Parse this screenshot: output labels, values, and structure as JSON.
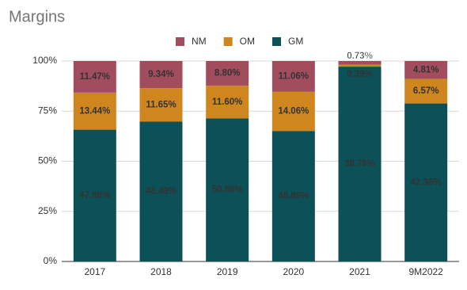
{
  "chart_data": {
    "type": "bar",
    "stacking": "percent",
    "title": "Margins",
    "categories": [
      "2017",
      "2018",
      "2019",
      "2020",
      "2021",
      "9M2022"
    ],
    "series": [
      {
        "name": "GM",
        "color": "#0c5058",
        "label_color": "#ffffff",
        "values": [
          47.86,
          48.49,
          50.88,
          46.89,
          38.78,
          42.36
        ],
        "value_labels": [
          "47.86%",
          "48.49%",
          "50.88%",
          "46.89%",
          "38.78%",
          "42.36%"
        ]
      },
      {
        "name": "OM",
        "color": "#d0861f",
        "label_color": "#1a1a1a",
        "values": [
          13.44,
          11.65,
          11.6,
          14.06,
          0.39,
          6.57
        ],
        "value_labels": [
          "13.44%",
          "11.65%",
          "11.60%",
          "14.06%",
          "0.39%",
          "6.57%"
        ]
      },
      {
        "name": "NM",
        "color": "#a14d5d",
        "label_color": "#ffffff",
        "values": [
          11.47,
          9.34,
          8.8,
          11.06,
          0.73,
          4.81
        ],
        "value_labels": [
          "11.47%",
          "9.34%",
          "8.80%",
          "11.06%",
          "0.73%",
          "4.81%"
        ]
      }
    ],
    "legend_order": [
      "NM",
      "OM",
      "GM"
    ],
    "ylim": [
      0,
      100
    ],
    "yticks": [
      {
        "value": 0,
        "label": "0%"
      },
      {
        "value": 25,
        "label": "25%"
      },
      {
        "value": 50,
        "label": "50%"
      },
      {
        "value": 75,
        "label": "75%"
      },
      {
        "value": 100,
        "label": "100%"
      }
    ],
    "grid": true
  }
}
